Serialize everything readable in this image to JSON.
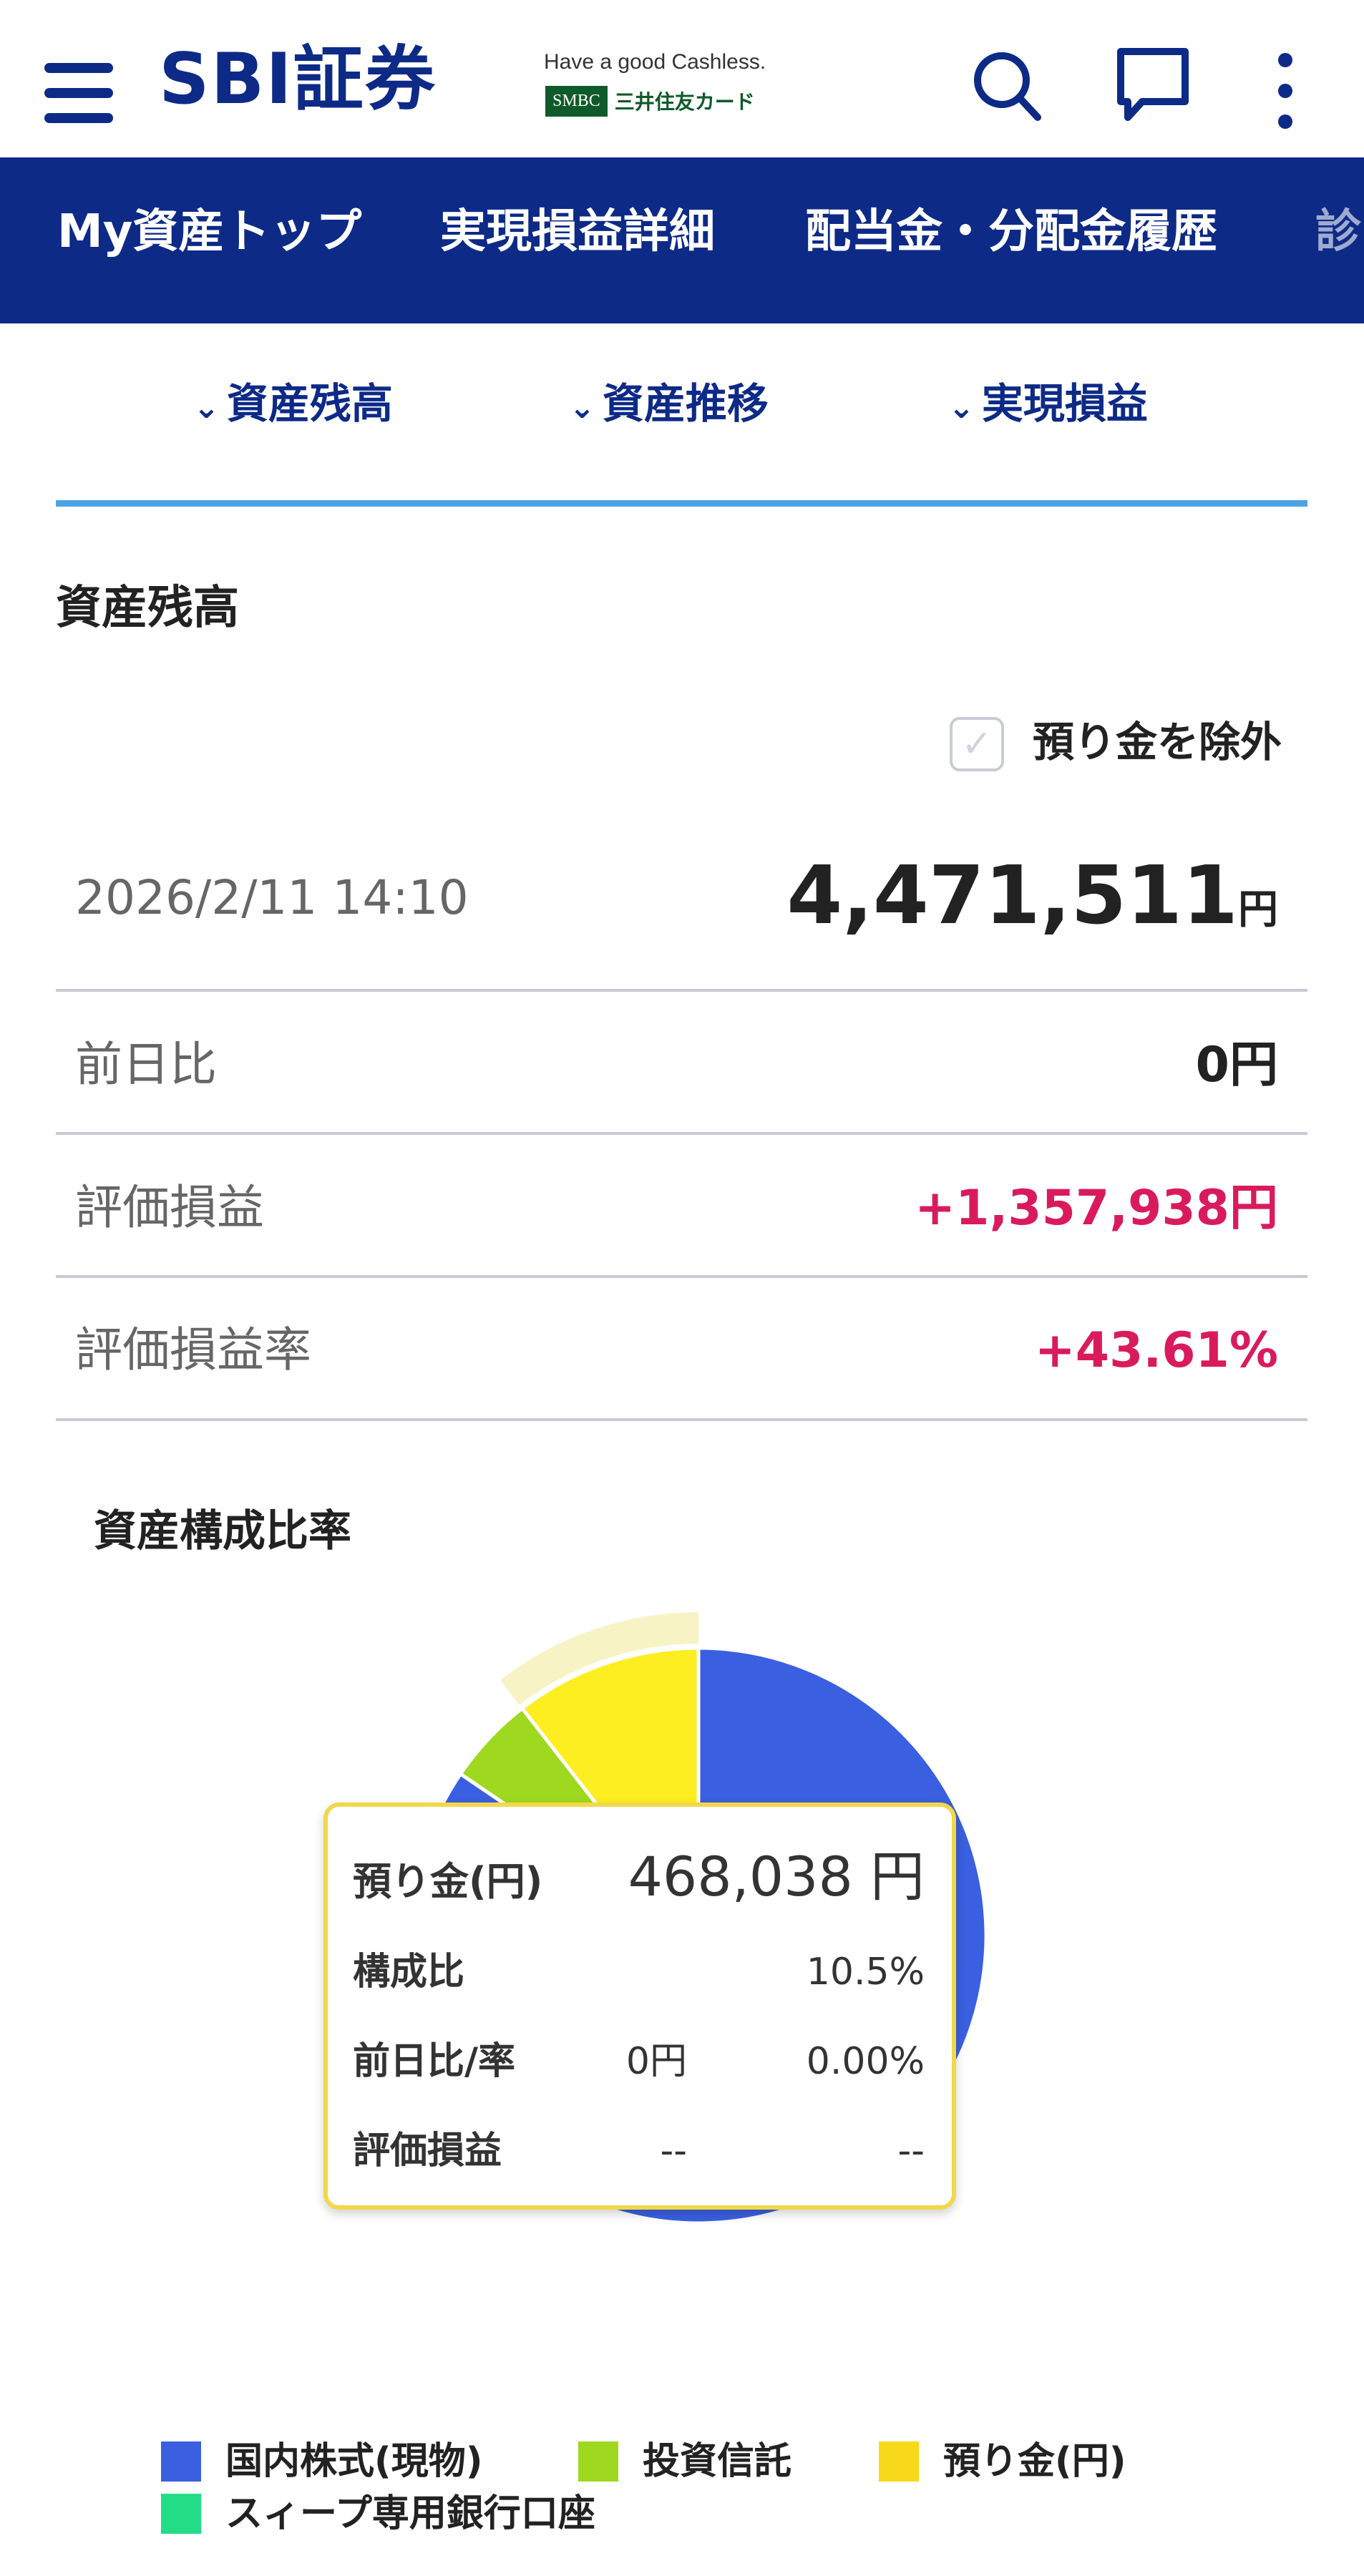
{
  "header": {
    "logo": "SBI証券",
    "tagline": "Have a good Cashless.",
    "smbc_badge": "SMBC",
    "smbc_text": "三井住友カード",
    "icons": [
      "menu-icon",
      "search-icon",
      "chat-icon",
      "more-vertical-icon"
    ]
  },
  "nav": {
    "tabs": [
      "My資産トップ",
      "実現損益詳細",
      "配当金・分配金履歴",
      "診"
    ]
  },
  "anchors": [
    {
      "label": "資産残高"
    },
    {
      "label": "資産推移"
    },
    {
      "label": "実現損益"
    }
  ],
  "balance": {
    "title": "資産残高",
    "exclude_deposit_label": "預り金を除外",
    "exclude_deposit_checked": false,
    "datetime": "2026/2/11 14:10",
    "total": "4,471,511",
    "total_unit": "円",
    "rows": [
      {
        "label": "前日比",
        "value": "0円",
        "color": "#222222"
      },
      {
        "label": "評価損益",
        "value": "+1,357,938円",
        "color": "#d91b5c"
      },
      {
        "label": "評価損益率",
        "value": "+43.61%",
        "color": "#d91b5c"
      }
    ]
  },
  "composition": {
    "title": "資産構成比率",
    "tooltip": {
      "name": "預り金(円)",
      "amount": "468,038 円",
      "ratio_label": "構成比",
      "ratio": "10.5%",
      "change_label": "前日比/率",
      "change_yen": "0円",
      "change_pct": "0.00%",
      "pl_label": "評価損益",
      "pl_yen": "--",
      "pl_pct": "--"
    }
  },
  "chart_data": {
    "type": "pie",
    "categories": [
      "国内株式(現物)",
      "投資信託",
      "預り金(円)",
      "スィープ専用銀行口座"
    ],
    "values": [
      84.5,
      5.0,
      10.5,
      0.0
    ],
    "unit": "%",
    "colors": [
      "#3a5fe0",
      "#9ed81f",
      "#fdee21",
      "#22dd86"
    ],
    "highlighted": "預り金(円)",
    "legend": "bottom"
  }
}
